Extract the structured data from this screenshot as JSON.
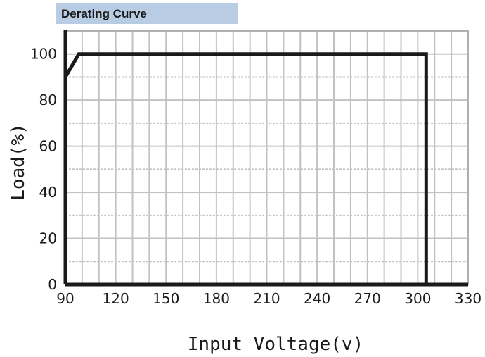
{
  "header": {
    "title": "Derating Curve"
  },
  "chart_data": {
    "type": "line",
    "title": "Derating Curve",
    "xlabel": "Input Voltage(v)",
    "ylabel": "Load(%)",
    "xlim": [
      90,
      330
    ],
    "ylim": [
      0,
      110
    ],
    "grid": true,
    "x_ticks": [
      "90",
      "120",
      "150",
      "180",
      "210",
      "240",
      "270",
      "300",
      "330"
    ],
    "y_ticks": [
      "0",
      "20",
      "40",
      "60",
      "80",
      "100"
    ],
    "series": [
      {
        "x": [
          90,
          98,
          305,
          305
        ],
        "y": [
          90,
          100,
          100,
          0
        ]
      }
    ],
    "colors": {
      "line": "#1a1a1a",
      "grid": "#c2c2c2",
      "frame": "#b0b0b0",
      "title_bg": "#b8cce4"
    }
  }
}
